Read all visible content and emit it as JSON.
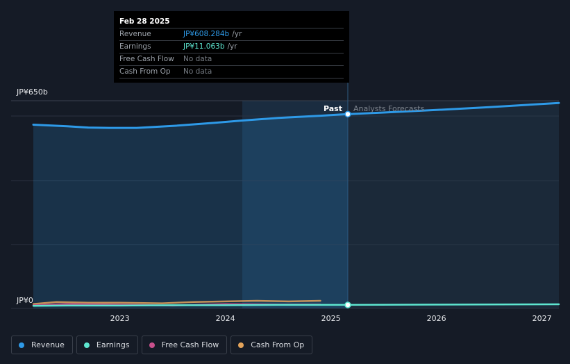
{
  "tooltip": {
    "date": "Feb 28 2025",
    "rows": [
      {
        "label": "Revenue",
        "value": "JP¥608.284b",
        "unit": "/yr",
        "color": "#2e9ae8"
      },
      {
        "label": "Earnings",
        "value": "JP¥11.063b",
        "unit": "/yr",
        "color": "#5ee6d0"
      },
      {
        "label": "Free Cash Flow",
        "value": "No data",
        "unit": "",
        "color": "#777d85"
      },
      {
        "label": "Cash From Op",
        "value": "No data",
        "unit": "",
        "color": "#777d85"
      }
    ]
  },
  "legend": [
    {
      "label": "Revenue",
      "color": "#2e9ae8"
    },
    {
      "label": "Earnings",
      "color": "#5ee6d0"
    },
    {
      "label": "Free Cash Flow",
      "color": "#c8508c"
    },
    {
      "label": "Cash From Op",
      "color": "#e3a35a"
    }
  ],
  "chart_data": {
    "type": "area",
    "y_top_label": "JP¥650b",
    "y_bottom_label": "JP¥0",
    "ylim": [
      0,
      650
    ],
    "xlim": [
      2022.18,
      2027.16
    ],
    "x_ticks": [
      2023,
      2024,
      2025,
      2026,
      2027
    ],
    "x_tick_labels": [
      "2023",
      "2024",
      "2025",
      "2026",
      "2027"
    ],
    "past_label": "Past",
    "forecast_label": "Analysts Forecasts",
    "past_end": 2025.16,
    "highlight_start": 2024.16,
    "grid": true,
    "series": [
      {
        "name": "Revenue",
        "color": "#2e9ae8",
        "x": [
          2022.18,
          2022.5,
          2022.7,
          2022.9,
          2023.16,
          2023.5,
          2023.9,
          2024.16,
          2024.5,
          2024.9,
          2025.16,
          2025.5,
          2026.0,
          2026.5,
          2027.16
        ],
        "y": [
          575,
          570,
          566,
          565,
          565,
          571,
          581,
          588,
          596,
          603,
          608,
          613,
          621,
          630,
          643
        ]
      },
      {
        "name": "Earnings",
        "color": "#5ee6d0",
        "x": [
          2022.18,
          2022.5,
          2023.0,
          2023.5,
          2024.0,
          2024.5,
          2024.9,
          2025.16,
          2026.0,
          2027.16
        ],
        "y": [
          8,
          9,
          9,
          10,
          10,
          11,
          11,
          11,
          12,
          13
        ]
      },
      {
        "name": "Free Cash Flow",
        "color": "#c8508c",
        "x": [
          2022.18,
          2022.5,
          2023.0,
          2023.5,
          2024.0,
          2024.5,
          2024.9
        ],
        "y": [
          10,
          14,
          12,
          9,
          14,
          12,
          12
        ]
      },
      {
        "name": "Cash From Op",
        "color": "#e3a35a",
        "x": [
          2022.18,
          2022.4,
          2022.7,
          2023.0,
          2023.4,
          2023.7,
          2024.0,
          2024.3,
          2024.6,
          2024.9
        ],
        "y": [
          14,
          20,
          18,
          18,
          16,
          20,
          22,
          24,
          22,
          24
        ]
      }
    ]
  }
}
